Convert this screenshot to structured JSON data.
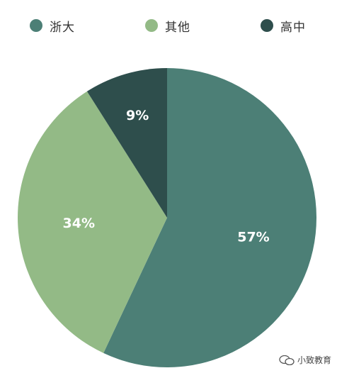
{
  "chart_data": {
    "type": "pie",
    "categories": [
      "浙大",
      "其他",
      "高中"
    ],
    "values": [
      57,
      34,
      9
    ],
    "labels": [
      "57%",
      "34%",
      "9%"
    ],
    "colors": [
      "#4c7f76",
      "#93ba86",
      "#2e4e4c"
    ],
    "legend_position": "top",
    "start_angle": "12 o'clock, clockwise"
  },
  "legend": {
    "items": [
      {
        "label": "浙大",
        "color": "#4c7f76"
      },
      {
        "label": "其他",
        "color": "#93ba86"
      },
      {
        "label": "高中",
        "color": "#2e4e4c"
      }
    ]
  },
  "watermark": {
    "text": "小致教育"
  }
}
